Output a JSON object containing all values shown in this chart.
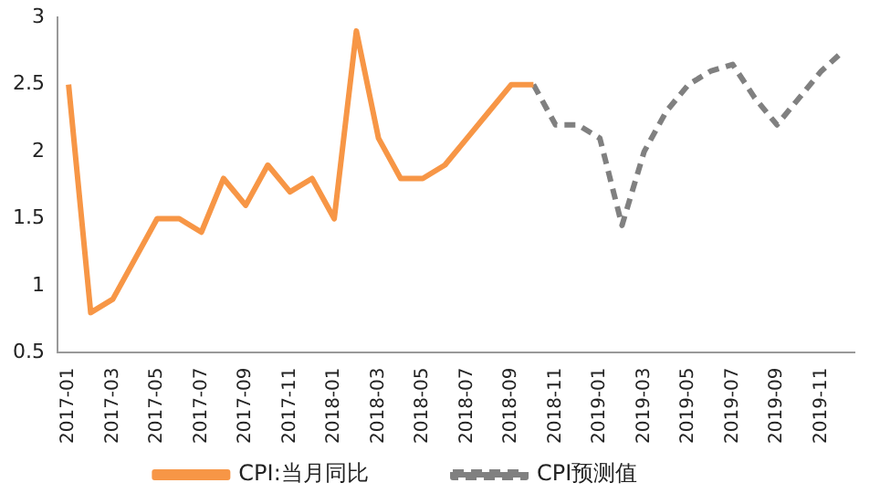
{
  "chart_data": {
    "type": "line",
    "categories": [
      "2017-01",
      null,
      "2017-03",
      null,
      "2017-05",
      null,
      "2017-07",
      null,
      "2017-09",
      null,
      "2017-11",
      null,
      "2018-01",
      null,
      "2018-03",
      null,
      "2018-05",
      null,
      "2018-07",
      null,
      "2018-09",
      null,
      "2018-11",
      null,
      "2019-01",
      null,
      "2019-03",
      null,
      "2019-05",
      null,
      "2019-07",
      null,
      "2019-09",
      null,
      "2019-11",
      null
    ],
    "series": [
      {
        "name": "CPI:当月同比",
        "color": "#f79646",
        "line_style": "solid",
        "values": [
          2.5,
          0.8,
          0.9,
          1.2,
          1.5,
          1.5,
          1.4,
          1.8,
          1.6,
          1.9,
          1.7,
          1.8,
          1.5,
          2.9,
          2.1,
          1.8,
          1.8,
          1.9,
          2.1,
          2.3,
          2.5,
          2.5,
          null,
          null,
          null,
          null,
          null,
          null,
          null,
          null,
          null,
          null,
          null,
          null,
          null,
          null
        ]
      },
      {
        "name": "CPI预测值",
        "color": "#808080",
        "line_style": "dashed",
        "values": [
          null,
          null,
          null,
          null,
          null,
          null,
          null,
          null,
          null,
          null,
          null,
          null,
          null,
          null,
          null,
          null,
          null,
          null,
          null,
          null,
          null,
          2.5,
          2.2,
          2.2,
          2.1,
          1.45,
          2.0,
          2.3,
          2.5,
          2.6,
          2.65,
          2.4,
          2.2,
          2.4,
          2.6,
          2.75
        ]
      }
    ],
    "ylim": [
      0.5,
      3
    ],
    "yticks": [
      0.5,
      1,
      1.5,
      2,
      2.5,
      3
    ],
    "grid": false,
    "legend": "bottom",
    "marker": "none"
  }
}
